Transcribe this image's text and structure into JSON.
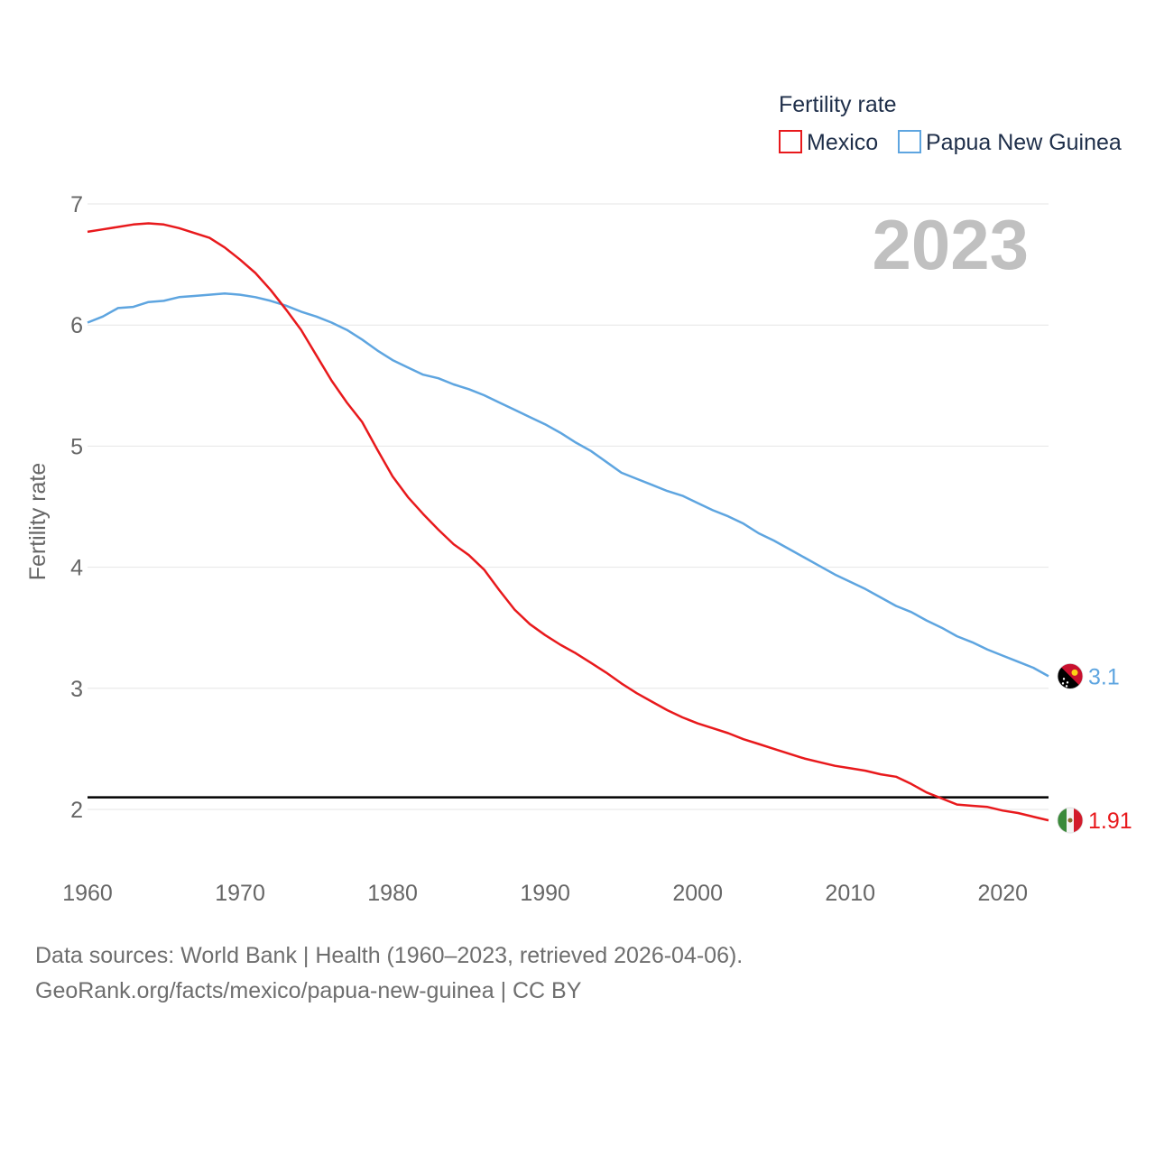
{
  "chart_data": {
    "type": "line",
    "title": "Fertility rate",
    "xlabel": "",
    "ylabel": "Fertility rate",
    "xlim": [
      1960,
      2023
    ],
    "ylim": [
      1.5,
      7
    ],
    "x_ticks": [
      1960,
      1970,
      1980,
      1990,
      2000,
      2010,
      2020
    ],
    "y_ticks": [
      2,
      3,
      4,
      5,
      6,
      7
    ],
    "current_year_label": "2023",
    "reference_line": {
      "y": 2.1,
      "color": "#000000"
    },
    "legend": {
      "title": "Fertility rate",
      "placement": "top-right"
    },
    "x": [
      1960,
      1961,
      1962,
      1963,
      1964,
      1965,
      1966,
      1967,
      1968,
      1969,
      1970,
      1971,
      1972,
      1973,
      1974,
      1975,
      1976,
      1977,
      1978,
      1979,
      1980,
      1981,
      1982,
      1983,
      1984,
      1985,
      1986,
      1987,
      1988,
      1989,
      1990,
      1991,
      1992,
      1993,
      1994,
      1995,
      1996,
      1997,
      1998,
      1999,
      2000,
      2001,
      2002,
      2003,
      2004,
      2005,
      2006,
      2007,
      2008,
      2009,
      2010,
      2011,
      2012,
      2013,
      2014,
      2015,
      2016,
      2017,
      2018,
      2019,
      2020,
      2021,
      2022,
      2023
    ],
    "series": [
      {
        "name": "Mexico",
        "color": "#e8191c",
        "flag": "mexico-flag",
        "end_label": "1.91",
        "values": [
          6.77,
          6.79,
          6.81,
          6.83,
          6.84,
          6.83,
          6.8,
          6.76,
          6.72,
          6.64,
          6.54,
          6.43,
          6.29,
          6.13,
          5.96,
          5.75,
          5.54,
          5.36,
          5.2,
          4.97,
          4.75,
          4.58,
          4.44,
          4.31,
          4.19,
          4.1,
          3.98,
          3.81,
          3.65,
          3.53,
          3.44,
          3.36,
          3.29,
          3.21,
          3.13,
          3.04,
          2.96,
          2.89,
          2.82,
          2.76,
          2.71,
          2.67,
          2.63,
          2.58,
          2.54,
          2.5,
          2.46,
          2.42,
          2.39,
          2.36,
          2.34,
          2.32,
          2.29,
          2.27,
          2.21,
          2.14,
          2.09,
          2.04,
          2.03,
          2.02,
          1.99,
          1.97,
          1.94,
          1.91
        ]
      },
      {
        "name": "Papua New Guinea",
        "color": "#5ea5e0",
        "flag": "papua-new-guinea-flag",
        "end_label": "3.1",
        "values": [
          6.02,
          6.07,
          6.14,
          6.15,
          6.19,
          6.2,
          6.23,
          6.24,
          6.25,
          6.26,
          6.25,
          6.23,
          6.2,
          6.16,
          6.11,
          6.07,
          6.02,
          5.96,
          5.88,
          5.79,
          5.71,
          5.65,
          5.59,
          5.56,
          5.51,
          5.47,
          5.42,
          5.36,
          5.3,
          5.24,
          5.18,
          5.11,
          5.03,
          4.96,
          4.87,
          4.78,
          4.73,
          4.68,
          4.63,
          4.59,
          4.53,
          4.47,
          4.42,
          4.36,
          4.28,
          4.22,
          4.15,
          4.08,
          4.01,
          3.94,
          3.88,
          3.82,
          3.75,
          3.68,
          3.63,
          3.56,
          3.5,
          3.43,
          3.38,
          3.32,
          3.27,
          3.22,
          3.17,
          3.1
        ]
      }
    ]
  },
  "footer": {
    "source_line": "Data sources: World Bank | Health (1960–2023, retrieved 2026-04-06).",
    "url_line": "GeoRank.org/facts/mexico/papua-new-guinea | CC BY"
  }
}
